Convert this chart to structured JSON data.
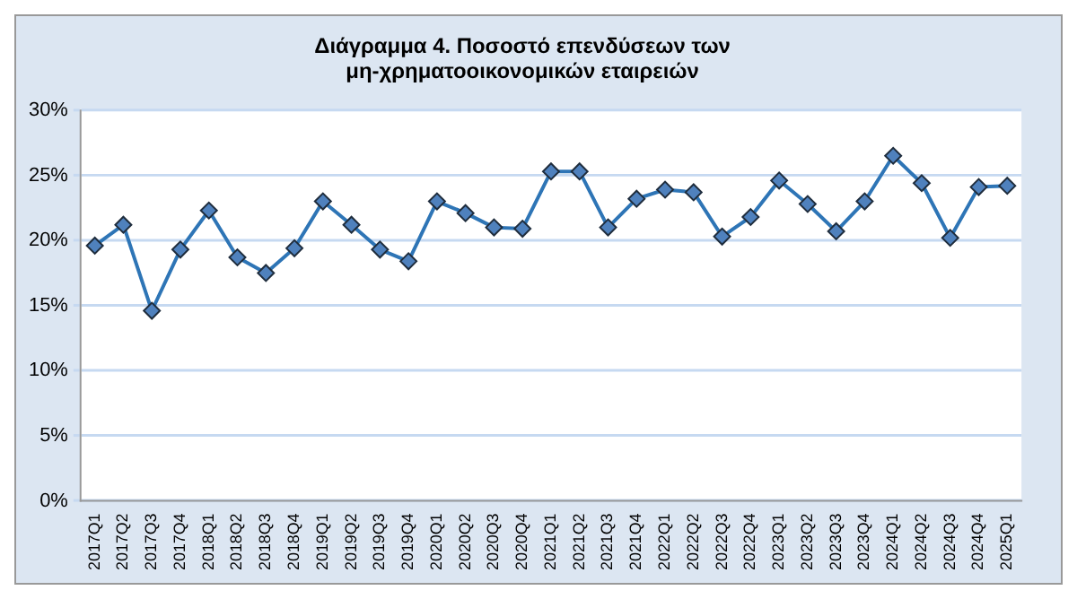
{
  "chart_data": {
    "type": "line",
    "title": [
      "Διάγραμμα 4. Ποσοστό επενδύσεων των",
      "μη-χρηματοοικονομικών εταιρειών"
    ],
    "categories": [
      "2017Q1",
      "2017Q2",
      "2017Q3",
      "2017Q4",
      "2018Q1",
      "2018Q2",
      "2018Q3",
      "2018Q4",
      "2019Q1",
      "2019Q2",
      "2019Q3",
      "2019Q4",
      "2020Q1",
      "2020Q2",
      "2020Q3",
      "2020Q4",
      "2021Q1",
      "2021Q2",
      "2021Q3",
      "2021Q4",
      "2022Q1",
      "2022Q2",
      "2022Q3",
      "2022Q4",
      "2023Q1",
      "2023Q2",
      "2023Q3",
      "2023Q4",
      "2024Q1",
      "2024Q2",
      "2024Q3",
      "2024Q4",
      "2025Q1"
    ],
    "series": [
      {
        "color": "#2e75b6",
        "values": [
          19.6,
          21.2,
          14.6,
          19.3,
          22.3,
          18.7,
          17.5,
          19.4,
          23.0,
          21.2,
          19.3,
          18.4,
          23.0,
          22.1,
          21.0,
          20.9,
          25.3,
          25.3,
          21.0,
          23.2,
          23.9,
          23.7,
          20.3,
          21.8,
          24.6,
          22.8,
          20.7,
          23.0,
          26.5,
          24.4,
          20.2,
          24.1,
          24.2
        ]
      }
    ],
    "ylim": [
      0,
      30
    ],
    "yticks": [
      {
        "value": 0,
        "label": "0%"
      },
      {
        "value": 5,
        "label": "5%"
      },
      {
        "value": 10,
        "label": "10%"
      },
      {
        "value": 15,
        "label": "15%"
      },
      {
        "value": 20,
        "label": "20%"
      },
      {
        "value": 25,
        "label": "25%"
      },
      {
        "value": 30,
        "label": "30%"
      }
    ],
    "grid": "y",
    "legend": false,
    "marker": "diamond",
    "line_style": "solid"
  }
}
